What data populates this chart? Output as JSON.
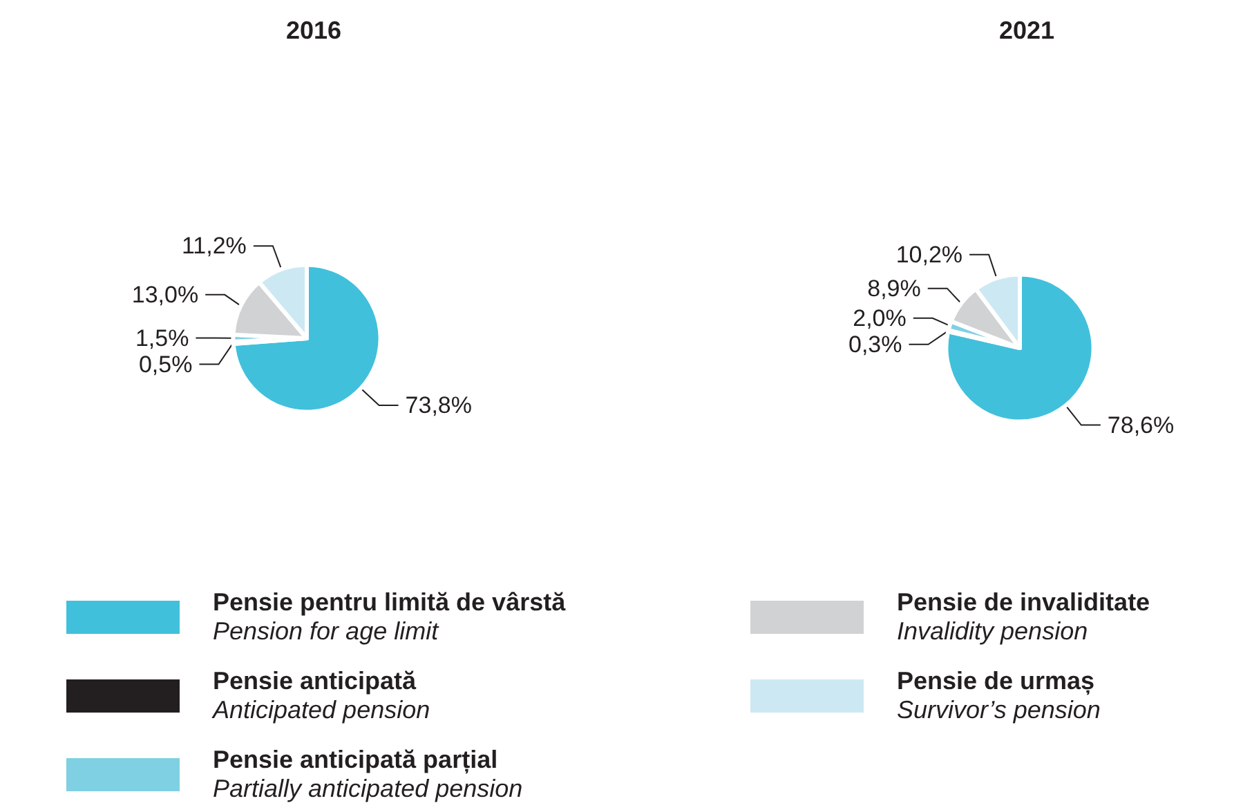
{
  "chart_data": {
    "type": "pie",
    "categories": [
      "Pensie pentru limită de vârstă\nPension for age limit",
      "Pensie anticipată\nAnticipated pension",
      "Pensie anticipată parțial\nPartially anticipated pension",
      "Pensie de invaliditate\nInvalidity pension",
      "Pensie de urmaș\nSurvivor’s pension"
    ],
    "colors": [
      "#41c0db",
      "#231f20",
      "#7fd0e2",
      "#d1d2d4",
      "#cce9f3"
    ],
    "series": [
      {
        "name": "2016",
        "values": [
          73.8,
          0.5,
          1.5,
          13.0,
          11.2
        ],
        "value_labels": [
          "73,8%",
          "0,5%",
          "1,5%",
          "13,0%",
          "11,2%"
        ]
      },
      {
        "name": "2021",
        "values": [
          78.6,
          0.3,
          2.0,
          8.9,
          10.2
        ],
        "value_labels": [
          "78,6%",
          "0,3%",
          "2,0%",
          "8,9%",
          "10,2%"
        ]
      }
    ],
    "legend": "bottom"
  }
}
